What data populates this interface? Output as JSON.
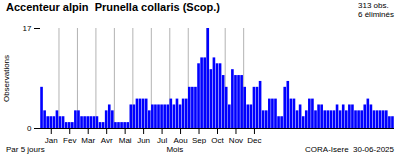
{
  "chart_data": {
    "type": "bar",
    "title": "Accenteur alpin  Prunella collaris (Scop.)",
    "annotations": [
      "313 obs.\n6 éliminés",
      "Par 5 jours",
      "CORA-Isere  30-06-2025"
    ],
    "xlabel": "Mois",
    "ylabel": "Observations",
    "categories": [
      null,
      null,
      null,
      "Jan",
      null,
      null,
      null,
      null,
      null,
      "Fev",
      null,
      null,
      null,
      null,
      null,
      "Mar",
      null,
      null,
      null,
      null,
      null,
      "Avr",
      null,
      null,
      null,
      null,
      null,
      "Mai",
      null,
      null,
      null,
      null,
      null,
      "Jun",
      null,
      null,
      null,
      null,
      null,
      "Jul",
      null,
      null,
      null,
      null,
      null,
      "Aou",
      null,
      null,
      null,
      null,
      null,
      "Sep",
      null,
      null,
      null,
      null,
      null,
      "Oct",
      null,
      null,
      null,
      null,
      null,
      "Nov",
      null,
      null,
      null,
      null,
      null,
      "Dec",
      null,
      null,
      null,
      null,
      null,
      null,
      null,
      null,
      null,
      null,
      null,
      null,
      null,
      null,
      null,
      null,
      null,
      null,
      null,
      null,
      null,
      null,
      null,
      null,
      null,
      null,
      null,
      null,
      null,
      null,
      null,
      null,
      null,
      null,
      null,
      null,
      null,
      null,
      null,
      null,
      null,
      null,
      null,
      null,
      null
    ],
    "values": [
      7,
      3,
      2,
      2,
      2,
      3,
      2,
      2,
      1,
      1,
      1,
      3,
      3,
      2,
      2,
      2,
      2,
      2,
      2,
      1,
      1,
      3,
      4,
      3,
      1,
      1,
      1,
      1,
      1,
      4,
      4,
      5,
      5,
      5,
      5,
      3,
      4,
      4,
      4,
      4,
      4,
      4,
      5,
      4,
      5,
      4,
      5,
      5,
      7,
      7,
      7,
      11,
      12,
      12,
      17,
      10,
      12,
      11,
      11,
      9,
      7,
      4,
      10,
      9,
      9,
      9,
      7,
      4,
      4,
      7,
      7,
      8,
      3,
      3,
      5,
      5,
      5,
      2,
      2,
      7,
      8,
      5,
      5,
      3,
      4,
      2,
      3,
      5,
      5,
      3,
      4,
      4,
      3,
      3,
      3,
      3,
      4,
      3,
      4,
      3,
      4,
      4,
      3,
      3,
      3,
      4,
      5,
      4,
      3,
      3,
      3,
      3,
      3,
      2,
      2
    ],
    "color": "#0000ff",
    "ylim": [
      0,
      17
    ],
    "yticks": [
      0,
      17
    ],
    "grid": true
  }
}
